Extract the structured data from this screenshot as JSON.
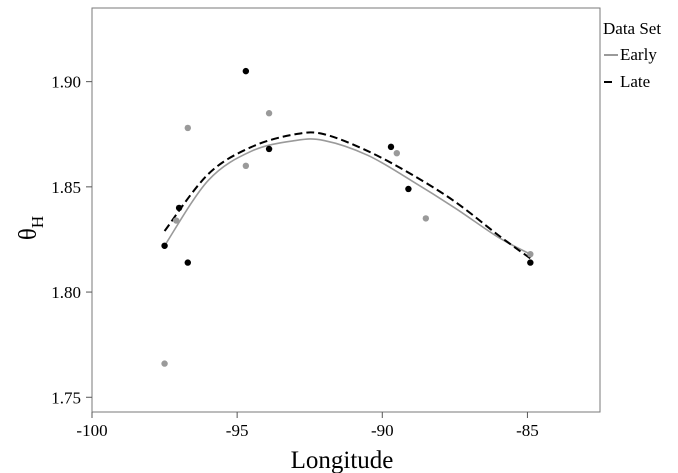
{
  "chart_data": {
    "type": "scatter",
    "title": "",
    "xlabel": "Longitude",
    "ylabel_main": "θ",
    "ylabel_sub": "H",
    "xlim": [
      -100,
      -82.5
    ],
    "ylim": [
      1.743,
      1.935
    ],
    "x_ticks": [
      -100,
      -95,
      -90,
      -85
    ],
    "x_tick_labels": [
      "-100",
      "-95",
      "-90",
      "-85"
    ],
    "y_ticks": [
      1.75,
      1.8,
      1.85,
      1.9
    ],
    "y_tick_labels": [
      "1.75",
      "1.80",
      "1.85",
      "1.90"
    ],
    "grid": false,
    "legend": {
      "title": "Data Set",
      "placement": "right",
      "entries": [
        {
          "label": "Early",
          "color": "#9a9a9a",
          "style": "solid"
        },
        {
          "label": "Late",
          "color": "#000000",
          "style": "dashed"
        }
      ]
    },
    "series": [
      {
        "name": "Early",
        "color": "#9a9a9a",
        "points": [
          {
            "x": -97.5,
            "y": 1.766
          },
          {
            "x": -97.5,
            "y": 1.822
          },
          {
            "x": -97.1,
            "y": 1.834
          },
          {
            "x": -96.7,
            "y": 1.878
          },
          {
            "x": -94.7,
            "y": 1.86
          },
          {
            "x": -93.9,
            "y": 1.885
          },
          {
            "x": -89.5,
            "y": 1.866
          },
          {
            "x": -88.5,
            "y": 1.835
          },
          {
            "x": -84.9,
            "y": 1.818
          }
        ],
        "fit": [
          {
            "x": -97.5,
            "y": 1.822
          },
          {
            "x": -96.0,
            "y": 1.853
          },
          {
            "x": -94.5,
            "y": 1.867
          },
          {
            "x": -93.0,
            "y": 1.872
          },
          {
            "x": -92.0,
            "y": 1.872
          },
          {
            "x": -90.5,
            "y": 1.865
          },
          {
            "x": -89.0,
            "y": 1.853
          },
          {
            "x": -87.5,
            "y": 1.84
          },
          {
            "x": -86.0,
            "y": 1.826
          },
          {
            "x": -84.9,
            "y": 1.818
          }
        ]
      },
      {
        "name": "Late",
        "color": "#000000",
        "points": [
          {
            "x": -97.5,
            "y": 1.822
          },
          {
            "x": -97.0,
            "y": 1.84
          },
          {
            "x": -96.7,
            "y": 1.814
          },
          {
            "x": -94.7,
            "y": 1.905
          },
          {
            "x": -93.9,
            "y": 1.868
          },
          {
            "x": -89.7,
            "y": 1.869
          },
          {
            "x": -89.1,
            "y": 1.849
          },
          {
            "x": -84.9,
            "y": 1.814
          }
        ],
        "fit": [
          {
            "x": -97.5,
            "y": 1.829
          },
          {
            "x": -96.0,
            "y": 1.856
          },
          {
            "x": -94.5,
            "y": 1.869
          },
          {
            "x": -93.0,
            "y": 1.875
          },
          {
            "x": -92.0,
            "y": 1.875
          },
          {
            "x": -90.5,
            "y": 1.867
          },
          {
            "x": -89.0,
            "y": 1.856
          },
          {
            "x": -87.5,
            "y": 1.843
          },
          {
            "x": -86.0,
            "y": 1.827
          },
          {
            "x": -84.9,
            "y": 1.816
          }
        ]
      }
    ]
  }
}
